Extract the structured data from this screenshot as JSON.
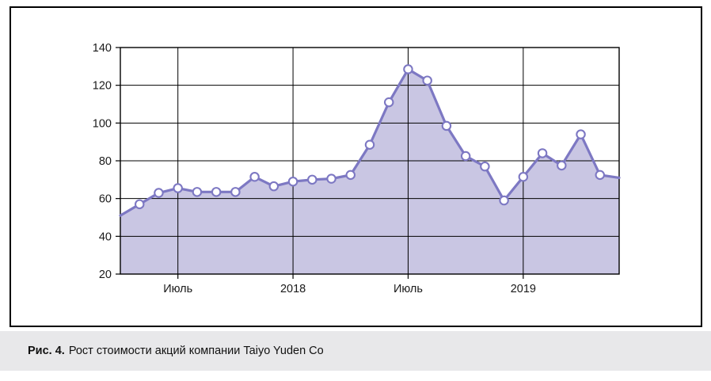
{
  "figure": {
    "caption_label": "Рис. 4.",
    "caption_text": "Рост стоимости акций компании Taiyo Yuden Co"
  },
  "chart_data": {
    "type": "area",
    "title": "Рост стоимости акций компании Taiyo Yuden Co",
    "values": [
      51,
      57,
      63,
      65.5,
      63.5,
      63.5,
      63.5,
      71.5,
      66.5,
      69,
      70,
      70.5,
      72.5,
      88.5,
      111,
      128.5,
      122.5,
      98.5,
      82.5,
      77,
      59,
      71.5,
      84,
      77.5,
      94,
      72.5,
      71
    ],
    "x_ticks": [
      {
        "label": "Июль",
        "point_index": 3
      },
      {
        "label": "2018",
        "point_index": 9
      },
      {
        "label": "Июль",
        "point_index": 15
      },
      {
        "label": "2019",
        "point_index": 21
      }
    ],
    "y_ticks": [
      "140",
      "120",
      "100",
      "80",
      "60",
      "40",
      "20"
    ],
    "ylim": [
      20,
      140
    ],
    "grid": true,
    "legend": "none",
    "hide_first_last_markers": true,
    "colors": {
      "line": "#7d78c3",
      "fill": "#c9c6e3",
      "marker_fill": "#ffffff",
      "axis": "#000000",
      "caption_strip": "#e8e8ea"
    }
  }
}
